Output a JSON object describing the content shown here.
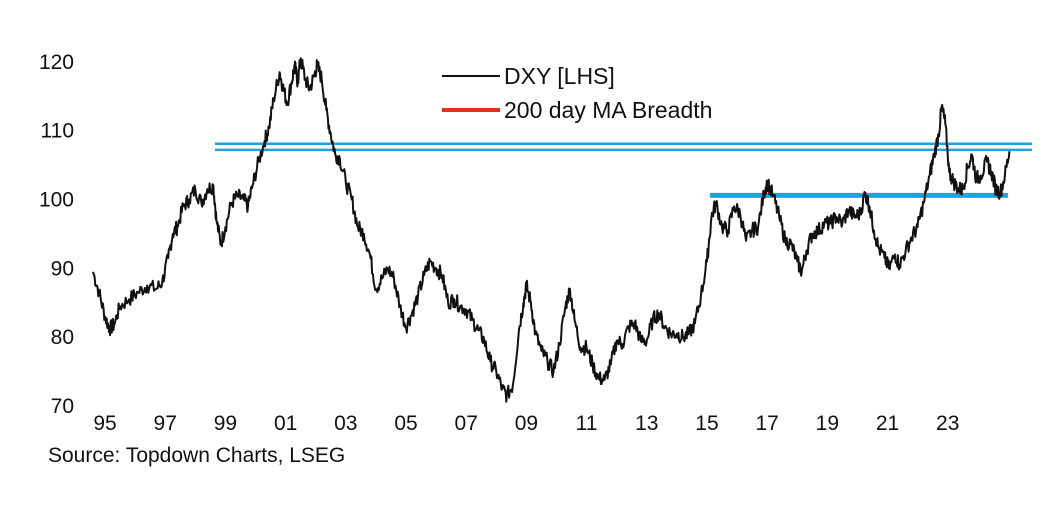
{
  "chart_data": {
    "type": "line",
    "title": "",
    "xlabel": "",
    "ylabel": "",
    "ylim": [
      70,
      122
    ],
    "xlim": [
      1994.5,
      2025.8
    ],
    "y_ticks": [
      70,
      80,
      90,
      100,
      110,
      120
    ],
    "x_ticks": [
      {
        "year": 1995,
        "label": "95"
      },
      {
        "year": 1997,
        "label": "97"
      },
      {
        "year": 1999,
        "label": "99"
      },
      {
        "year": 2001,
        "label": "01"
      },
      {
        "year": 2003,
        "label": "03"
      },
      {
        "year": 2005,
        "label": "05"
      },
      {
        "year": 2007,
        "label": "07"
      },
      {
        "year": 2009,
        "label": "09"
      },
      {
        "year": 2011,
        "label": "11"
      },
      {
        "year": 2013,
        "label": "13"
      },
      {
        "year": 2015,
        "label": "15"
      },
      {
        "year": 2017,
        "label": "17"
      },
      {
        "year": 2019,
        "label": "19"
      },
      {
        "year": 2021,
        "label": "21"
      },
      {
        "year": 2023,
        "label": "23"
      }
    ],
    "legend": {
      "placement": "top-center",
      "entries": [
        {
          "name": "DXY [LHS]",
          "color": "#111111"
        },
        {
          "name": "200 day MA Breadth",
          "color": "#e0301e"
        }
      ]
    },
    "series": [
      {
        "name": "DXY [LHS]",
        "color": "#111111",
        "points": [
          [
            1994.6,
            89.5
          ],
          [
            1994.8,
            86.5
          ],
          [
            1995.0,
            83.0
          ],
          [
            1995.15,
            81.2
          ],
          [
            1995.3,
            81.8
          ],
          [
            1995.5,
            84.5
          ],
          [
            1995.8,
            85.5
          ],
          [
            1996.1,
            86.5
          ],
          [
            1996.4,
            87.5
          ],
          [
            1996.7,
            87.0
          ],
          [
            1996.9,
            88.0
          ],
          [
            1997.1,
            91.5
          ],
          [
            1997.25,
            95.0
          ],
          [
            1997.4,
            96.0
          ],
          [
            1997.6,
            99.0
          ],
          [
            1997.8,
            100.0
          ],
          [
            1998.0,
            101.5
          ],
          [
            1998.2,
            99.5
          ],
          [
            1998.4,
            101.5
          ],
          [
            1998.6,
            102.0
          ],
          [
            1998.7,
            97.0
          ],
          [
            1998.85,
            93.5
          ],
          [
            1999.0,
            96.0
          ],
          [
            1999.2,
            99.5
          ],
          [
            1999.4,
            100.5
          ],
          [
            1999.6,
            100.0
          ],
          [
            1999.75,
            99.0
          ],
          [
            1999.9,
            102.0
          ],
          [
            2000.1,
            105.5
          ],
          [
            2000.3,
            108.5
          ],
          [
            2000.45,
            110.5
          ],
          [
            2000.6,
            114.5
          ],
          [
            2000.8,
            118.5
          ],
          [
            2000.9,
            116.5
          ],
          [
            2001.05,
            114.0
          ],
          [
            2001.2,
            117.0
          ],
          [
            2001.3,
            119.5
          ],
          [
            2001.4,
            117.0
          ],
          [
            2001.5,
            120.5
          ],
          [
            2001.65,
            117.5
          ],
          [
            2001.8,
            116.0
          ],
          [
            2001.95,
            118.0
          ],
          [
            2002.05,
            119.5
          ],
          [
            2002.2,
            117.5
          ],
          [
            2002.35,
            113.0
          ],
          [
            2002.5,
            109.5
          ],
          [
            2002.65,
            106.5
          ],
          [
            2002.8,
            106.0
          ],
          [
            2003.0,
            102.5
          ],
          [
            2003.2,
            100.0
          ],
          [
            2003.4,
            96.0
          ],
          [
            2003.6,
            95.0
          ],
          [
            2003.8,
            92.0
          ],
          [
            2004.0,
            87.0
          ],
          [
            2004.2,
            88.5
          ],
          [
            2004.4,
            90.0
          ],
          [
            2004.6,
            88.5
          ],
          [
            2004.8,
            84.5
          ],
          [
            2005.0,
            81.5
          ],
          [
            2005.2,
            83.5
          ],
          [
            2005.4,
            86.0
          ],
          [
            2005.6,
            89.0
          ],
          [
            2005.8,
            91.0
          ],
          [
            2006.0,
            90.0
          ],
          [
            2006.2,
            89.0
          ],
          [
            2006.4,
            85.0
          ],
          [
            2006.6,
            85.5
          ],
          [
            2006.8,
            84.5
          ],
          [
            2007.0,
            84.0
          ],
          [
            2007.2,
            82.5
          ],
          [
            2007.4,
            81.0
          ],
          [
            2007.6,
            79.5
          ],
          [
            2007.8,
            76.5
          ],
          [
            2008.0,
            75.0
          ],
          [
            2008.2,
            72.5
          ],
          [
            2008.35,
            71.5
          ],
          [
            2008.55,
            73.0
          ],
          [
            2008.75,
            81.0
          ],
          [
            2008.9,
            85.0
          ],
          [
            2009.0,
            87.5
          ],
          [
            2009.15,
            85.0
          ],
          [
            2009.3,
            80.5
          ],
          [
            2009.5,
            78.0
          ],
          [
            2009.7,
            76.5
          ],
          [
            2009.9,
            75.0
          ],
          [
            2010.1,
            79.0
          ],
          [
            2010.3,
            84.5
          ],
          [
            2010.45,
            87.0
          ],
          [
            2010.6,
            82.5
          ],
          [
            2010.8,
            78.5
          ],
          [
            2011.0,
            78.5
          ],
          [
            2011.2,
            76.0
          ],
          [
            2011.4,
            74.0
          ],
          [
            2011.6,
            73.8
          ],
          [
            2011.8,
            76.0
          ],
          [
            2012.0,
            79.5
          ],
          [
            2012.2,
            79.0
          ],
          [
            2012.4,
            81.5
          ],
          [
            2012.6,
            82.0
          ],
          [
            2012.8,
            79.5
          ],
          [
            2013.0,
            79.5
          ],
          [
            2013.2,
            82.5
          ],
          [
            2013.4,
            83.5
          ],
          [
            2013.6,
            81.5
          ],
          [
            2013.8,
            80.5
          ],
          [
            2014.0,
            80.5
          ],
          [
            2014.2,
            80.0
          ],
          [
            2014.4,
            80.5
          ],
          [
            2014.6,
            82.0
          ],
          [
            2014.8,
            86.0
          ],
          [
            2015.0,
            91.0
          ],
          [
            2015.15,
            97.5
          ],
          [
            2015.3,
            99.5
          ],
          [
            2015.5,
            96.0
          ],
          [
            2015.7,
            95.5
          ],
          [
            2015.9,
            99.0
          ],
          [
            2016.1,
            98.0
          ],
          [
            2016.3,
            94.0
          ],
          [
            2016.5,
            95.5
          ],
          [
            2016.7,
            96.0
          ],
          [
            2016.9,
            101.0
          ],
          [
            2017.0,
            102.5
          ],
          [
            2017.2,
            100.5
          ],
          [
            2017.4,
            97.5
          ],
          [
            2017.6,
            94.0
          ],
          [
            2017.8,
            93.5
          ],
          [
            2018.0,
            91.0
          ],
          [
            2018.15,
            89.5
          ],
          [
            2018.3,
            92.5
          ],
          [
            2018.5,
            95.0
          ],
          [
            2018.7,
            95.5
          ],
          [
            2018.9,
            96.5
          ],
          [
            2019.1,
            96.5
          ],
          [
            2019.3,
            97.5
          ],
          [
            2019.5,
            96.5
          ],
          [
            2019.7,
            98.5
          ],
          [
            2019.9,
            97.5
          ],
          [
            2020.1,
            98.0
          ],
          [
            2020.25,
            101.0
          ],
          [
            2020.4,
            99.0
          ],
          [
            2020.55,
            95.5
          ],
          [
            2020.7,
            93.0
          ],
          [
            2020.9,
            91.5
          ],
          [
            2021.05,
            90.0
          ],
          [
            2021.25,
            92.0
          ],
          [
            2021.4,
            90.5
          ],
          [
            2021.6,
            92.5
          ],
          [
            2021.8,
            94.5
          ],
          [
            2022.0,
            96.0
          ],
          [
            2022.2,
            99.5
          ],
          [
            2022.4,
            103.5
          ],
          [
            2022.55,
            106.5
          ],
          [
            2022.7,
            109.5
          ],
          [
            2022.8,
            113.5
          ],
          [
            2022.92,
            111.0
          ],
          [
            2023.05,
            104.0
          ],
          [
            2023.2,
            102.5
          ],
          [
            2023.35,
            101.5
          ],
          [
            2023.5,
            101.5
          ],
          [
            2023.65,
            104.5
          ],
          [
            2023.8,
            106.5
          ],
          [
            2023.95,
            103.0
          ],
          [
            2024.1,
            103.5
          ],
          [
            2024.3,
            105.5
          ],
          [
            2024.45,
            104.0
          ],
          [
            2024.6,
            101.5
          ],
          [
            2024.75,
            101.0
          ],
          [
            2024.9,
            103.5
          ],
          [
            2025.05,
            107.0
          ]
        ]
      }
    ],
    "reference_lines": [
      {
        "name": "upper-horizontal-band-top",
        "color": "#1fa3db",
        "y": 108.1,
        "x_from": 1998.65,
        "x_to": 2025.8
      },
      {
        "name": "upper-horizontal-band-bottom",
        "color": "#1fa3db",
        "y": 107.2,
        "x_from": 1998.65,
        "x_to": 2025.8
      },
      {
        "name": "lower-support-line",
        "color": "#1fa3db",
        "y": 100.6,
        "x_from": 2015.1,
        "x_to": 2025.0
      }
    ]
  },
  "source": "Source: Topdown Charts, LSEG"
}
